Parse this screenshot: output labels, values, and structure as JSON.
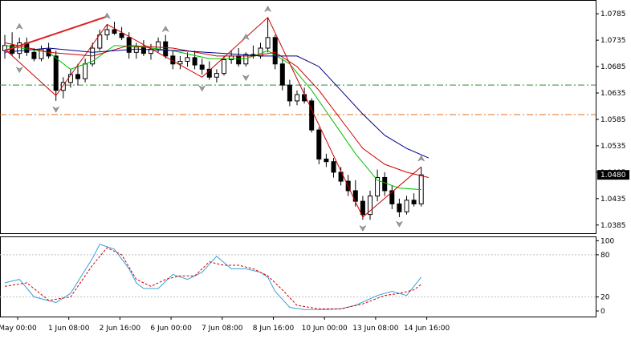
{
  "chart_data": [
    {
      "type": "candlestick",
      "price_axis": {
        "ticks": [
          "1.0785",
          "1.0735",
          "1.0685",
          "1.0635",
          "1.0585",
          "1.0535",
          "1.0485",
          "1.0435",
          "1.0385"
        ],
        "range": [
          1.0368,
          1.0805
        ],
        "current_price_label": "1.0480"
      },
      "x_axis": {
        "ticks": [
          "May 00:00",
          "1 Jun 08:00",
          "2 Jun 16:00",
          "6 Jun 00:00",
          "7 Jun 08:00",
          "8 Jun 16:00",
          "10 Jun 00:00",
          "13 Jun 08:00",
          "14 Jun 16:00"
        ]
      },
      "candles": [
        [
          1.0715,
          1.0745,
          1.07,
          1.0725
        ],
        [
          1.0725,
          1.075,
          1.0705,
          1.071
        ],
        [
          1.071,
          1.074,
          1.07,
          1.073
        ],
        [
          1.073,
          1.074,
          1.0705,
          1.0712
        ],
        [
          1.0712,
          1.072,
          1.0695,
          1.07
        ],
        [
          1.07,
          1.0725,
          1.0695,
          1.0718
        ],
        [
          1.0718,
          1.073,
          1.07,
          1.0705
        ],
        [
          1.0705,
          1.0715,
          1.062,
          1.064
        ],
        [
          1.064,
          1.0665,
          1.0625,
          1.0655
        ],
        [
          1.0655,
          1.068,
          1.0645,
          1.067
        ],
        [
          1.067,
          1.069,
          1.065,
          1.0662
        ],
        [
          1.0662,
          1.07,
          1.0655,
          1.069
        ],
        [
          1.069,
          1.073,
          1.0685,
          1.072
        ],
        [
          1.072,
          1.0755,
          1.0715,
          1.0745
        ],
        [
          1.0745,
          1.0765,
          1.0735,
          1.0755
        ],
        [
          1.0755,
          1.077,
          1.0745,
          1.0748
        ],
        [
          1.0748,
          1.076,
          1.0735,
          1.074
        ],
        [
          1.074,
          1.075,
          1.07,
          1.0712
        ],
        [
          1.0712,
          1.073,
          1.07,
          1.0722
        ],
        [
          1.0722,
          1.0735,
          1.0705,
          1.071
        ],
        [
          1.071,
          1.0728,
          1.0698,
          1.0718
        ],
        [
          1.0718,
          1.074,
          1.0712,
          1.0732
        ],
        [
          1.0732,
          1.0745,
          1.07,
          1.0705
        ],
        [
          1.0705,
          1.0715,
          1.068,
          1.069
        ],
        [
          1.069,
          1.0705,
          1.068,
          1.0695
        ],
        [
          1.0695,
          1.0712,
          1.0685,
          1.0702
        ],
        [
          1.0702,
          1.0715,
          1.068,
          1.0688
        ],
        [
          1.0688,
          1.07,
          1.067,
          1.068
        ],
        [
          1.068,
          1.0695,
          1.066,
          1.0665
        ],
        [
          1.0665,
          1.068,
          1.0655,
          1.0672
        ],
        [
          1.0672,
          1.0705,
          1.0668,
          1.0698
        ],
        [
          1.0698,
          1.0715,
          1.069,
          1.0705
        ],
        [
          1.0705,
          1.072,
          1.0685,
          1.069
        ],
        [
          1.069,
          1.0712,
          1.0685,
          1.0708
        ],
        [
          1.0708,
          1.0725,
          1.07,
          1.0705
        ],
        [
          1.0705,
          1.073,
          1.07,
          1.072
        ],
        [
          1.072,
          1.0778,
          1.0712,
          1.074
        ],
        [
          1.074,
          1.0745,
          1.068,
          1.069
        ],
        [
          1.069,
          1.07,
          1.064,
          1.065
        ],
        [
          1.065,
          1.066,
          1.061,
          1.062
        ],
        [
          1.062,
          1.064,
          1.0612,
          1.0632
        ],
        [
          1.0632,
          1.0645,
          1.0615,
          1.062
        ],
        [
          1.062,
          1.0625,
          1.056,
          1.0565
        ],
        [
          1.0565,
          1.057,
          1.05,
          1.051
        ],
        [
          1.051,
          1.052,
          1.0495,
          1.0505
        ],
        [
          1.0505,
          1.0512,
          1.0475,
          1.0485
        ],
        [
          1.0485,
          1.0495,
          1.046,
          1.0468
        ],
        [
          1.0468,
          1.048,
          1.044,
          1.045
        ],
        [
          1.045,
          1.047,
          1.042,
          1.043
        ],
        [
          1.043,
          1.044,
          1.0395,
          1.0405
        ],
        [
          1.0405,
          1.045,
          1.0395,
          1.044
        ],
        [
          1.044,
          1.049,
          1.043,
          1.0475
        ],
        [
          1.0475,
          1.0485,
          1.044,
          1.045
        ],
        [
          1.045,
          1.046,
          1.0415,
          1.0425
        ],
        [
          1.0425,
          1.0435,
          1.04,
          1.041
        ],
        [
          1.041,
          1.044,
          1.0405,
          1.0432
        ],
        [
          1.0432,
          1.0445,
          1.042,
          1.0425
        ],
        [
          1.0425,
          1.0495,
          1.042,
          1.048
        ]
      ],
      "horizontal_levels": [
        {
          "value": 1.065,
          "color": "#2e8b2e",
          "style": "dash-dot"
        },
        {
          "value": 1.0594,
          "color": "#e07020",
          "style": "dash-dot"
        }
      ],
      "moving_averages": [
        {
          "color": "#00c000",
          "values": [
            [
              0,
              1.0725
            ],
            [
              6,
              1.0712
            ],
            [
              9,
              1.068
            ],
            [
              12,
              1.0695
            ],
            [
              15,
              1.0725
            ],
            [
              19,
              1.0722
            ],
            [
              23,
              1.0715
            ],
            [
              28,
              1.07
            ],
            [
              33,
              1.07
            ],
            [
              36,
              1.0715
            ],
            [
              39,
              1.069
            ],
            [
              42,
              1.064
            ],
            [
              45,
              1.058
            ],
            [
              48,
              1.052
            ],
            [
              51,
              1.047
            ],
            [
              54,
              1.0455
            ],
            [
              57,
              1.0452
            ]
          ]
        },
        {
          "color": "#cc0000",
          "values": [
            [
              0,
              1.073
            ],
            [
              6,
              1.0712
            ],
            [
              12,
              1.0705
            ],
            [
              17,
              1.0725
            ],
            [
              23,
              1.072
            ],
            [
              29,
              1.0705
            ],
            [
              34,
              1.0705
            ],
            [
              37,
              1.0712
            ],
            [
              40,
              1.0685
            ],
            [
              43,
              1.064
            ],
            [
              46,
              1.0585
            ],
            [
              49,
              1.053
            ],
            [
              52,
              1.05
            ],
            [
              55,
              1.0485
            ],
            [
              58,
              1.0475
            ]
          ]
        },
        {
          "color": "#00008b",
          "values": [
            [
              0,
              1.0712
            ],
            [
              6,
              1.072
            ],
            [
              12,
              1.0712
            ],
            [
              18,
              1.0718
            ],
            [
              24,
              1.0715
            ],
            [
              30,
              1.071
            ],
            [
              35,
              1.0705
            ],
            [
              40,
              1.0705
            ],
            [
              43,
              1.0685
            ],
            [
              46,
              1.064
            ],
            [
              49,
              1.0595
            ],
            [
              52,
              1.0555
            ],
            [
              55,
              1.053
            ],
            [
              58,
              1.0512
            ]
          ]
        }
      ],
      "zigzag": {
        "color": "#cc0000",
        "points": [
          [
            0,
            1.0718
          ],
          [
            7,
            1.063
          ],
          [
            14,
            1.0765
          ],
          [
            27,
            1.0665
          ],
          [
            36,
            1.0778
          ],
          [
            49,
            1.04
          ],
          [
            57,
            1.0495
          ]
        ]
      },
      "trendline": {
        "color": "#dd2222",
        "points": [
          [
            0,
            1.0715
          ],
          [
            14,
            1.078
          ]
        ]
      },
      "fractals_up": [
        [
          2,
          1.075
        ],
        [
          14,
          1.077
        ],
        [
          22,
          1.0745
        ],
        [
          33,
          1.073
        ],
        [
          36,
          1.0783
        ],
        [
          57,
          1.05
        ]
      ],
      "fractals_down": [
        [
          2,
          1.069
        ],
        [
          7,
          1.0615
        ],
        [
          27,
          1.0655
        ],
        [
          33,
          1.0675
        ],
        [
          49,
          1.039
        ],
        [
          54,
          1.0398
        ]
      ]
    },
    {
      "type": "line",
      "name_hint": "stochastic",
      "y_ticks": [
        "100",
        "80",
        "20",
        "0"
      ],
      "y_range": [
        -8,
        105
      ],
      "levels": [
        80,
        20
      ],
      "series": [
        {
          "color": "#3aa0d8",
          "style": "solid",
          "values": [
            [
              0,
              40
            ],
            [
              2,
              45
            ],
            [
              4,
              20
            ],
            [
              7,
              12
            ],
            [
              9,
              25
            ],
            [
              12,
              75
            ],
            [
              13,
              95
            ],
            [
              15,
              88
            ],
            [
              17,
              60
            ],
            [
              18,
              40
            ],
            [
              19,
              32
            ],
            [
              21,
              32
            ],
            [
              23,
              52
            ],
            [
              25,
              45
            ],
            [
              27,
              55
            ],
            [
              29,
              78
            ],
            [
              31,
              60
            ],
            [
              33,
              60
            ],
            [
              35,
              55
            ],
            [
              36,
              48
            ],
            [
              37,
              28
            ],
            [
              39,
              5
            ],
            [
              41,
              2
            ],
            [
              44,
              2
            ],
            [
              46,
              3
            ],
            [
              48,
              8
            ],
            [
              51,
              22
            ],
            [
              53,
              28
            ],
            [
              55,
              22
            ],
            [
              57,
              48
            ]
          ]
        },
        {
          "color": "#cc0000",
          "style": "dashed",
          "values": [
            [
              0,
              35
            ],
            [
              3,
              40
            ],
            [
              6,
              15
            ],
            [
              9,
              20
            ],
            [
              12,
              65
            ],
            [
              14,
              90
            ],
            [
              16,
              80
            ],
            [
              18,
              45
            ],
            [
              20,
              35
            ],
            [
              22,
              45
            ],
            [
              24,
              50
            ],
            [
              26,
              50
            ],
            [
              28,
              70
            ],
            [
              30,
              65
            ],
            [
              32,
              65
            ],
            [
              34,
              60
            ],
            [
              36,
              50
            ],
            [
              38,
              30
            ],
            [
              40,
              8
            ],
            [
              43,
              3
            ],
            [
              46,
              3
            ],
            [
              49,
              10
            ],
            [
              52,
              22
            ],
            [
              54,
              25
            ],
            [
              56,
              30
            ],
            [
              57,
              38
            ]
          ]
        }
      ]
    }
  ]
}
